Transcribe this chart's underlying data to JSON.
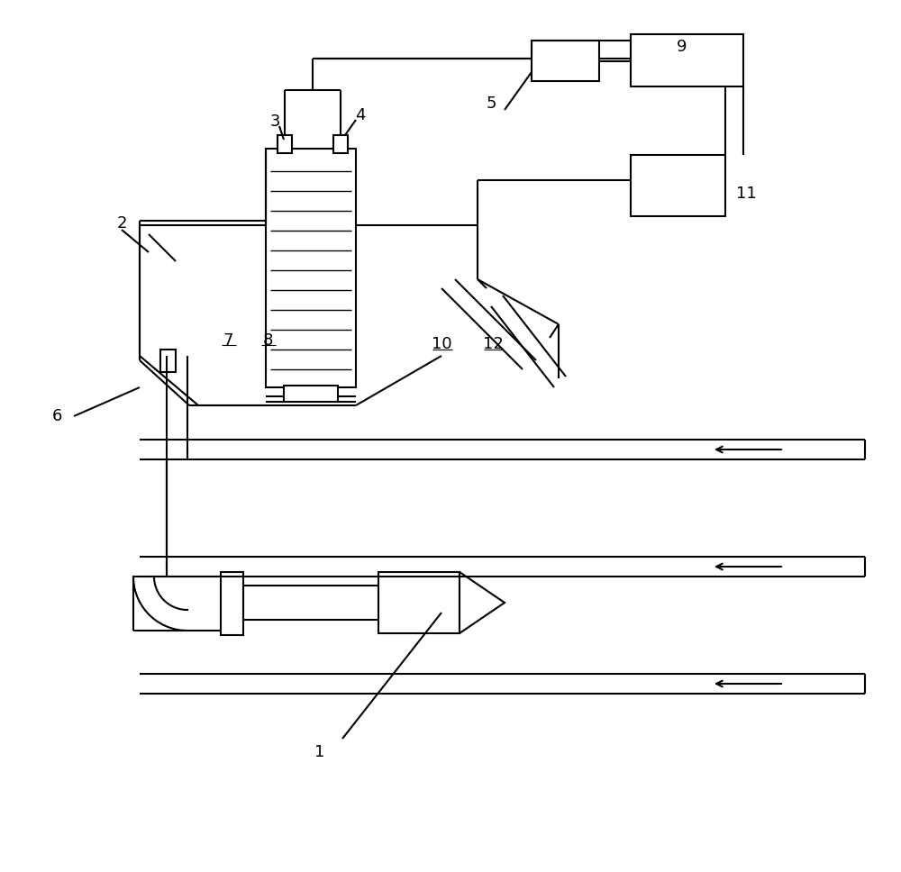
{
  "background_color": "#ffffff",
  "line_color": "#000000",
  "lw": 1.5
}
